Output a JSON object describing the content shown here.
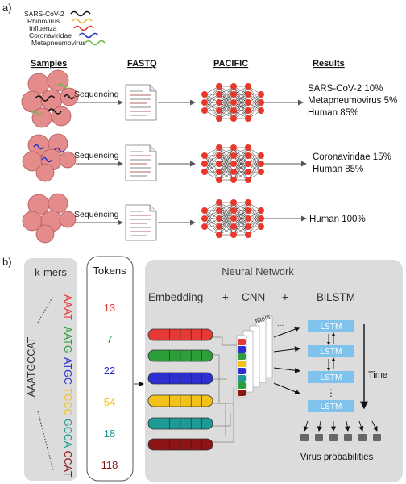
{
  "panel_a": {
    "label": "a)",
    "legend": [
      {
        "name": "SARS-CoV-2",
        "color": "#111111"
      },
      {
        "name": "Rhinovirus",
        "color": "#f3b233"
      },
      {
        "name": "Influenza",
        "color": "#e03a2a"
      },
      {
        "name": "Coronaviridae",
        "color": "#2532c4"
      },
      {
        "name": "Metapneumovirus",
        "color": "#6fb94a"
      }
    ],
    "headers": {
      "samples": "Samples",
      "fastq": "FASTQ",
      "pacific": "PACIFIC",
      "results": "Results"
    },
    "step_label": "Sequencing",
    "rows": [
      {
        "results": [
          "SARS-CoV-2 10%",
          "Metapneumovirus 5%",
          "Human 85%"
        ]
      },
      {
        "results": [
          "Coronaviridae 15%",
          "Human 85%"
        ]
      },
      {
        "results": [
          "Human 100%"
        ]
      }
    ]
  },
  "panel_b": {
    "label": "b)",
    "kmers_title": "k-mers",
    "sequence": "AAATGCCAT",
    "kmers": [
      {
        "text": "AAAT",
        "color": "#e53935"
      },
      {
        "text": "AATG",
        "color": "#2e9e3b"
      },
      {
        "text": "ATGC",
        "color": "#2d2fd0"
      },
      {
        "text": "TGCC",
        "color": "#f2c21a"
      },
      {
        "text": "GCCA",
        "color": "#1e9a96"
      },
      {
        "text": "CCAT",
        "color": "#8b1515"
      }
    ],
    "tokens_title": "Tokens",
    "tokens": [
      "13",
      "7",
      "22",
      "54",
      "18",
      "118"
    ],
    "nn_title": "Neural Network",
    "embedding_label": "Embedding",
    "plus1": "+",
    "cnn_label": "CNN",
    "plus2": "+",
    "bilstm_label": "BiLSTM",
    "filters_label": "filters",
    "lstm_label": "LSTM",
    "ellipsis": "⋮",
    "time_label": "Time",
    "output_label": "Virus probabilities"
  }
}
